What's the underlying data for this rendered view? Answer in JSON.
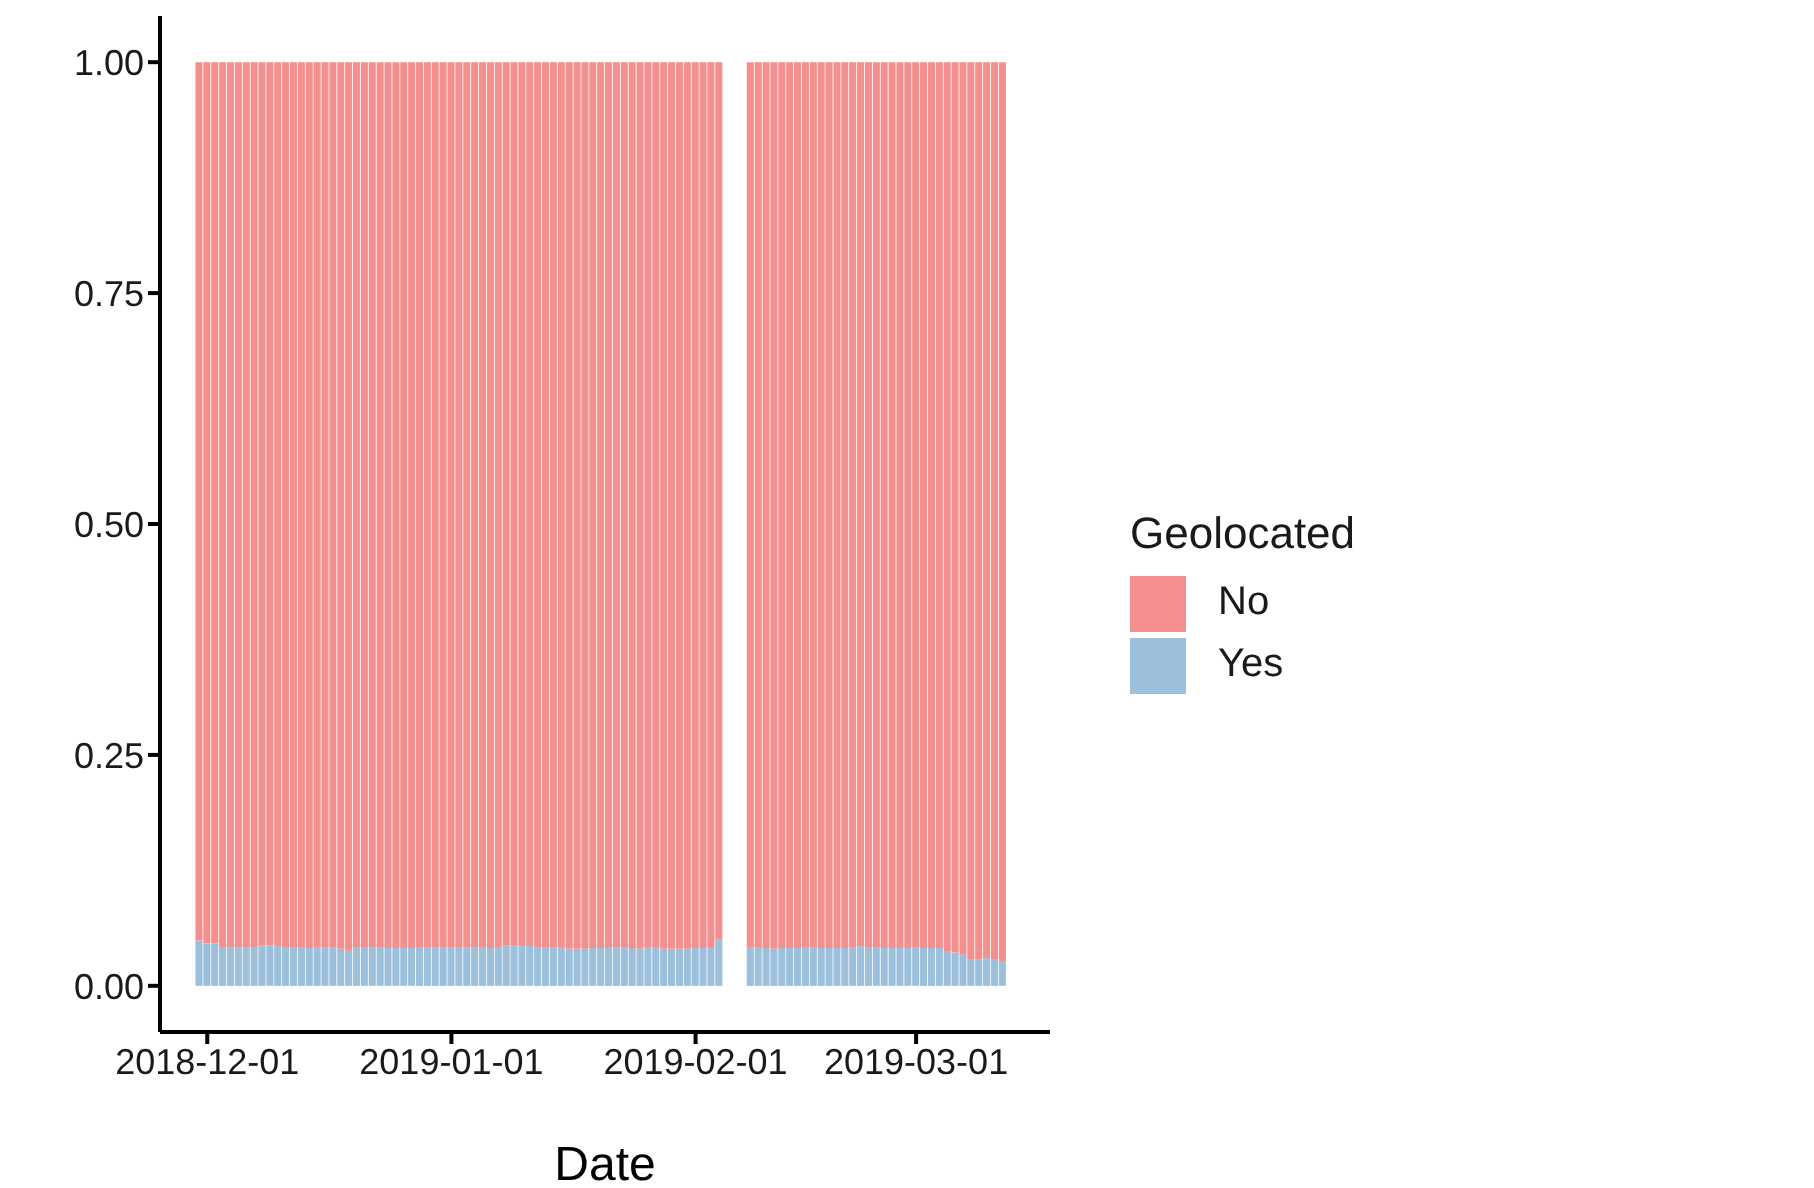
{
  "chart_data": {
    "type": "bar",
    "stacked": true,
    "xlabel": "Date",
    "legend_title": "Geolocated",
    "legend": "right",
    "grid": false,
    "x": [
      "2018-11-30",
      "2018-12-01",
      "2018-12-02",
      "2018-12-03",
      "2018-12-04",
      "2018-12-05",
      "2018-12-06",
      "2018-12-07",
      "2018-12-08",
      "2018-12-09",
      "2018-12-10",
      "2018-12-11",
      "2018-12-12",
      "2018-12-13",
      "2018-12-14",
      "2018-12-15",
      "2018-12-16",
      "2018-12-17",
      "2018-12-18",
      "2018-12-19",
      "2018-12-20",
      "2018-12-21",
      "2018-12-22",
      "2018-12-23",
      "2018-12-24",
      "2018-12-25",
      "2018-12-26",
      "2018-12-27",
      "2018-12-28",
      "2018-12-29",
      "2018-12-30",
      "2018-12-31",
      "2019-01-01",
      "2019-01-02",
      "2019-01-03",
      "2019-01-04",
      "2019-01-05",
      "2019-01-06",
      "2019-01-07",
      "2019-01-08",
      "2019-01-09",
      "2019-01-10",
      "2019-01-11",
      "2019-01-12",
      "2019-01-13",
      "2019-01-14",
      "2019-01-15",
      "2019-01-16",
      "2019-01-17",
      "2019-01-18",
      "2019-01-19",
      "2019-01-20",
      "2019-01-21",
      "2019-01-22",
      "2019-01-23",
      "2019-01-24",
      "2019-01-25",
      "2019-01-26",
      "2019-01-27",
      "2019-01-28",
      "2019-01-29",
      "2019-01-30",
      "2019-01-31",
      "2019-02-01",
      "2019-02-02",
      "2019-02-03",
      "2019-02-04",
      "2019-02-08",
      "2019-02-09",
      "2019-02-10",
      "2019-02-11",
      "2019-02-12",
      "2019-02-13",
      "2019-02-14",
      "2019-02-15",
      "2019-02-16",
      "2019-02-17",
      "2019-02-18",
      "2019-02-19",
      "2019-02-20",
      "2019-02-21",
      "2019-02-22",
      "2019-02-23",
      "2019-02-24",
      "2019-02-25",
      "2019-02-26",
      "2019-02-27",
      "2019-02-28",
      "2019-03-01",
      "2019-03-02",
      "2019-03-03",
      "2019-03-04",
      "2019-03-05",
      "2019-03-06",
      "2019-03-07",
      "2019-03-08",
      "2019-03-09",
      "2019-03-10",
      "2019-03-11",
      "2019-03-12"
    ],
    "series": [
      {
        "name": "Yes",
        "color": "#9cbfdc",
        "values": [
          0.049,
          0.046,
          0.046,
          0.042,
          0.042,
          0.042,
          0.042,
          0.042,
          0.044,
          0.044,
          0.043,
          0.042,
          0.042,
          0.042,
          0.041,
          0.042,
          0.042,
          0.042,
          0.04,
          0.038,
          0.042,
          0.042,
          0.042,
          0.042,
          0.041,
          0.041,
          0.041,
          0.041,
          0.042,
          0.042,
          0.042,
          0.042,
          0.042,
          0.042,
          0.042,
          0.042,
          0.042,
          0.041,
          0.042,
          0.044,
          0.044,
          0.043,
          0.043,
          0.042,
          0.042,
          0.042,
          0.042,
          0.04,
          0.04,
          0.04,
          0.041,
          0.041,
          0.042,
          0.042,
          0.042,
          0.041,
          0.04,
          0.042,
          0.042,
          0.04,
          0.04,
          0.04,
          0.04,
          0.041,
          0.041,
          0.042,
          0.05,
          0.042,
          0.042,
          0.041,
          0.04,
          0.041,
          0.041,
          0.041,
          0.042,
          0.042,
          0.041,
          0.041,
          0.041,
          0.041,
          0.042,
          0.043,
          0.042,
          0.042,
          0.041,
          0.041,
          0.041,
          0.041,
          0.042,
          0.041,
          0.041,
          0.041,
          0.037,
          0.036,
          0.034,
          0.029,
          0.029,
          0.03,
          0.029,
          0.027
        ]
      },
      {
        "name": "No",
        "color": "#f3908f",
        "values": [
          0.951,
          0.954,
          0.954,
          0.958,
          0.958,
          0.958,
          0.958,
          0.958,
          0.956,
          0.956,
          0.957,
          0.958,
          0.958,
          0.958,
          0.959,
          0.958,
          0.958,
          0.958,
          0.96,
          0.962,
          0.958,
          0.958,
          0.958,
          0.958,
          0.959,
          0.959,
          0.959,
          0.959,
          0.958,
          0.958,
          0.958,
          0.958,
          0.958,
          0.958,
          0.958,
          0.958,
          0.958,
          0.959,
          0.958,
          0.956,
          0.956,
          0.957,
          0.957,
          0.958,
          0.958,
          0.958,
          0.958,
          0.96,
          0.96,
          0.96,
          0.959,
          0.959,
          0.958,
          0.958,
          0.958,
          0.959,
          0.96,
          0.958,
          0.958,
          0.96,
          0.96,
          0.96,
          0.96,
          0.959,
          0.959,
          0.958,
          0.95,
          0.958,
          0.958,
          0.959,
          0.96,
          0.959,
          0.959,
          0.959,
          0.958,
          0.958,
          0.959,
          0.959,
          0.959,
          0.959,
          0.958,
          0.957,
          0.958,
          0.958,
          0.959,
          0.959,
          0.959,
          0.959,
          0.958,
          0.959,
          0.959,
          0.959,
          0.963,
          0.964,
          0.966,
          0.971,
          0.971,
          0.97,
          0.971,
          0.973
        ]
      }
    ],
    "xlim": [
      "2018-11-25",
      "2019-03-18"
    ],
    "xticks": [
      {
        "value": "2018-12-01",
        "label": "2018-12-01"
      },
      {
        "value": "2019-01-01",
        "label": "2019-01-01"
      },
      {
        "value": "2019-02-01",
        "label": "2019-02-01"
      },
      {
        "value": "2019-03-01",
        "label": "2019-03-01"
      }
    ],
    "ylim": [
      -0.05,
      1.05
    ],
    "yticks": [
      {
        "value": 0,
        "label": "0.00"
      },
      {
        "value": 0.25,
        "label": "0.25"
      },
      {
        "value": 0.5,
        "label": "0.50"
      },
      {
        "value": 0.75,
        "label": "0.75"
      },
      {
        "value": 1,
        "label": "1.00"
      }
    ]
  }
}
